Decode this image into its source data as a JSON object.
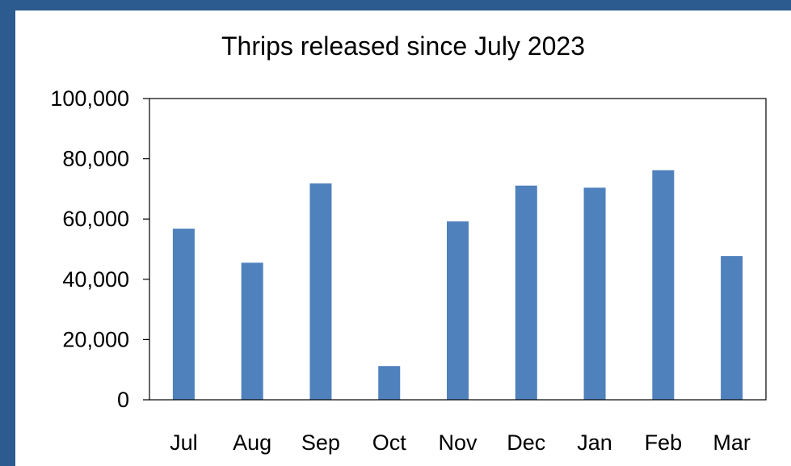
{
  "colors": {
    "frame": "#2c5b8f",
    "background": "#ffffff",
    "bar": "#4f81bd",
    "axis": "#000000"
  },
  "chart_data": {
    "type": "bar",
    "title": "Thrips released since July 2023",
    "xlabel": "",
    "ylabel": "",
    "categories": [
      "Jul",
      "Aug",
      "Sep",
      "Oct",
      "Nov",
      "Dec",
      "Jan",
      "Feb",
      "Mar"
    ],
    "values": [
      56800,
      45500,
      71800,
      11200,
      59200,
      71100,
      70400,
      76200,
      47700
    ],
    "ylim": [
      0,
      100000
    ],
    "yticks": [
      "0",
      "20,000",
      "40,000",
      "60,000",
      "80,000",
      "100,000"
    ],
    "grid": false,
    "legend": "none"
  }
}
